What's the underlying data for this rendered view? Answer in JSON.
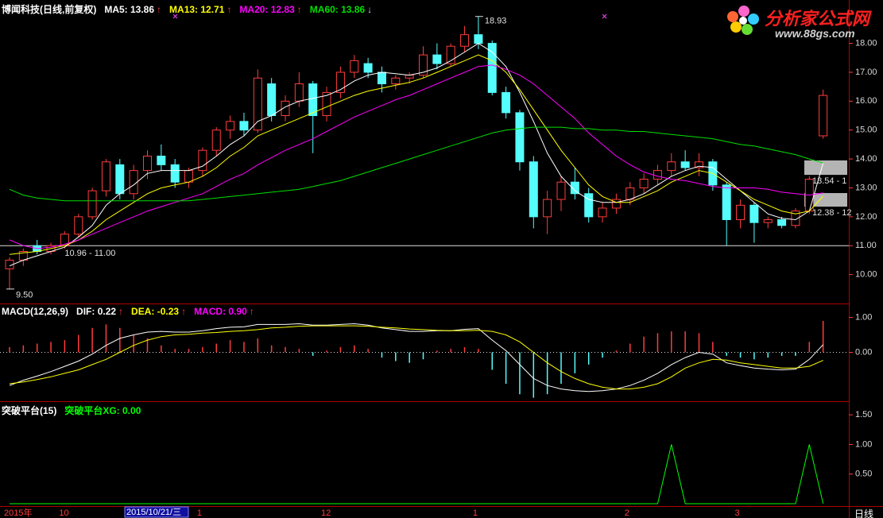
{
  "chart_data": [
    {
      "type": "candlestick",
      "title": "博闻科技(日线,前复权)",
      "cursor_label": "2015/10/21/三",
      "categories": [
        "2015年",
        null,
        null,
        null,
        "10",
        null,
        null,
        null,
        null,
        null,
        null,
        null,
        null,
        null,
        "1",
        null,
        null,
        null,
        null,
        null,
        null,
        null,
        null,
        "12",
        null,
        null,
        null,
        null,
        null,
        null,
        null,
        null,
        null,
        null,
        "1",
        null,
        null,
        null,
        null,
        null,
        null,
        null,
        null,
        null,
        null,
        "2",
        null,
        null,
        null,
        null,
        null,
        null,
        null,
        "3",
        null,
        null,
        null,
        null,
        null,
        null
      ],
      "ohlc": [
        [
          10.2,
          10.6,
          9.5,
          10.5
        ],
        [
          10.5,
          10.9,
          10.3,
          10.8
        ],
        [
          11.0,
          11.2,
          10.7,
          10.8
        ],
        [
          10.8,
          11.1,
          10.7,
          11.0
        ],
        [
          11.0,
          11.5,
          10.9,
          11.4
        ],
        [
          11.4,
          12.1,
          11.3,
          12.0
        ],
        [
          12.0,
          13.0,
          11.9,
          12.9
        ],
        [
          12.9,
          14.0,
          12.7,
          13.9
        ],
        [
          13.8,
          14.0,
          12.6,
          12.8
        ],
        [
          12.8,
          13.8,
          12.6,
          13.6
        ],
        [
          13.6,
          14.3,
          13.3,
          14.1
        ],
        [
          14.1,
          14.5,
          13.6,
          13.8
        ],
        [
          13.8,
          14.0,
          13.0,
          13.2
        ],
        [
          13.2,
          13.7,
          13.0,
          13.6
        ],
        [
          13.6,
          14.4,
          13.4,
          14.3
        ],
        [
          14.3,
          15.1,
          14.1,
          15.0
        ],
        [
          15.0,
          15.5,
          14.7,
          15.3
        ],
        [
          15.3,
          15.6,
          14.8,
          15.0
        ],
        [
          15.0,
          17.1,
          14.9,
          16.8
        ],
        [
          16.6,
          16.8,
          15.3,
          15.5
        ],
        [
          15.5,
          16.2,
          15.3,
          16.0
        ],
        [
          16.0,
          17.0,
          15.8,
          16.6
        ],
        [
          16.6,
          16.7,
          14.2,
          15.5
        ],
        [
          15.5,
          16.5,
          15.3,
          16.3
        ],
        [
          16.3,
          17.2,
          16.1,
          17.0
        ],
        [
          17.0,
          17.6,
          16.8,
          17.4
        ],
        [
          17.3,
          17.5,
          16.8,
          17.0
        ],
        [
          17.0,
          17.2,
          16.3,
          16.6
        ],
        [
          16.6,
          16.9,
          16.4,
          16.8
        ],
        [
          16.8,
          17.0,
          16.6,
          16.9
        ],
        [
          16.9,
          17.9,
          16.8,
          17.6
        ],
        [
          17.6,
          18.0,
          17.1,
          17.3
        ],
        [
          17.3,
          18.0,
          17.2,
          17.9
        ],
        [
          17.9,
          18.6,
          17.7,
          18.3
        ],
        [
          18.3,
          18.93,
          17.8,
          18.0
        ],
        [
          18.0,
          18.1,
          16.2,
          16.3
        ],
        [
          16.3,
          16.5,
          15.4,
          15.6
        ],
        [
          15.6,
          15.7,
          13.6,
          13.9
        ],
        [
          13.9,
          14.1,
          11.6,
          12.0
        ],
        [
          12.0,
          12.9,
          11.4,
          12.6
        ],
        [
          12.6,
          13.4,
          12.2,
          13.2
        ],
        [
          13.2,
          13.7,
          12.6,
          12.8
        ],
        [
          12.8,
          13.0,
          11.8,
          12.0
        ],
        [
          12.0,
          12.5,
          11.8,
          12.3
        ],
        [
          12.3,
          12.8,
          12.1,
          12.6
        ],
        [
          12.6,
          13.2,
          12.4,
          13.0
        ],
        [
          13.0,
          13.5,
          12.8,
          13.3
        ],
        [
          13.3,
          13.8,
          13.1,
          13.6
        ],
        [
          13.6,
          14.2,
          13.4,
          13.9
        ],
        [
          13.9,
          14.3,
          13.6,
          13.7
        ],
        [
          13.7,
          14.2,
          13.4,
          13.9
        ],
        [
          13.9,
          14.0,
          12.9,
          13.1
        ],
        [
          13.1,
          13.2,
          11.0,
          11.9
        ],
        [
          11.9,
          12.6,
          11.6,
          12.4
        ],
        [
          12.4,
          12.5,
          11.1,
          11.8
        ],
        [
          11.8,
          12.0,
          11.6,
          11.9
        ],
        [
          11.9,
          12.0,
          11.6,
          11.7
        ],
        [
          11.7,
          12.3,
          11.6,
          12.2
        ],
        [
          12.2,
          13.4,
          12.1,
          13.3
        ],
        [
          14.8,
          16.4,
          14.7,
          16.2
        ]
      ],
      "up_color": "#ff3c3c",
      "down_color": "#54fcfc",
      "series": [
        {
          "name": "MA5: 13.86",
          "arrow": "↑",
          "arrow_color": "#ff3c3c",
          "color": "#ffffff",
          "values": [
            10.3,
            10.5,
            10.65,
            10.8,
            10.95,
            11.3,
            11.7,
            12.4,
            12.8,
            13.1,
            13.5,
            13.6,
            13.6,
            13.6,
            13.75,
            14.1,
            14.5,
            14.8,
            15.3,
            15.5,
            15.8,
            16.0,
            16.1,
            16.2,
            16.4,
            16.7,
            16.9,
            17.0,
            16.95,
            16.9,
            17.0,
            17.15,
            17.4,
            17.7,
            18.0,
            17.7,
            17.2,
            16.3,
            15.3,
            14.2,
            13.4,
            12.9,
            12.6,
            12.5,
            12.5,
            12.6,
            12.8,
            13.1,
            13.4,
            13.6,
            13.75,
            13.7,
            13.3,
            12.9,
            12.5,
            12.1,
            11.95,
            11.9,
            12.2,
            13.86
          ]
        },
        {
          "name": "MA13: 12.71",
          "arrow": "↑",
          "arrow_color": "#ff3c3c",
          "color": "#ffff00",
          "values": [
            10.7,
            10.75,
            10.8,
            10.9,
            11.0,
            11.2,
            11.5,
            11.9,
            12.2,
            12.5,
            12.8,
            13.0,
            13.1,
            13.2,
            13.4,
            13.7,
            14.1,
            14.4,
            14.8,
            15.0,
            15.2,
            15.4,
            15.6,
            15.8,
            16.0,
            16.2,
            16.35,
            16.45,
            16.55,
            16.65,
            16.8,
            17.0,
            17.2,
            17.4,
            17.6,
            17.4,
            17.0,
            16.4,
            15.7,
            15.0,
            14.3,
            13.7,
            13.1,
            12.7,
            12.5,
            12.5,
            12.7,
            12.9,
            13.2,
            13.4,
            13.6,
            13.5,
            13.2,
            12.9,
            12.6,
            12.4,
            12.2,
            12.1,
            12.2,
            12.71
          ]
        },
        {
          "name": "MA20: 12.83",
          "arrow": "↑",
          "arrow_color": "#ff3c3c",
          "color": "#ff00ff",
          "values": [
            11.2,
            11.0,
            10.9,
            10.95,
            11.05,
            11.2,
            11.4,
            11.6,
            11.8,
            12.0,
            12.2,
            12.35,
            12.5,
            12.65,
            12.8,
            13.05,
            13.3,
            13.5,
            13.8,
            14.05,
            14.3,
            14.5,
            14.7,
            14.95,
            15.2,
            15.45,
            15.65,
            15.85,
            16.05,
            16.2,
            16.4,
            16.6,
            16.8,
            17.0,
            17.2,
            17.25,
            17.1,
            16.9,
            16.6,
            16.2,
            15.8,
            15.4,
            14.9,
            14.5,
            14.1,
            13.8,
            13.55,
            13.4,
            13.3,
            13.25,
            13.15,
            13.05,
            13.0,
            13.0,
            13.0,
            12.95,
            12.85,
            12.8,
            12.75,
            12.83
          ]
        },
        {
          "name": "MA60: 13.86",
          "arrow": "↓",
          "arrow_color": "#cfcfff",
          "color": "#00e000",
          "values": [
            12.95,
            12.75,
            12.65,
            12.6,
            12.55,
            12.55,
            12.55,
            12.55,
            12.55,
            12.55,
            12.55,
            12.55,
            12.55,
            12.55,
            12.6,
            12.65,
            12.7,
            12.75,
            12.8,
            12.85,
            12.9,
            12.95,
            13.05,
            13.15,
            13.25,
            13.4,
            13.55,
            13.7,
            13.85,
            14.0,
            14.15,
            14.3,
            14.45,
            14.6,
            14.75,
            14.9,
            15.0,
            15.05,
            15.1,
            15.1,
            15.1,
            15.05,
            15.05,
            15.0,
            15.0,
            14.95,
            14.95,
            14.9,
            14.85,
            14.8,
            14.75,
            14.7,
            14.6,
            14.5,
            14.45,
            14.35,
            14.25,
            14.15,
            14.0,
            13.86
          ]
        }
      ],
      "annotations": [
        {
          "label": "18.93",
          "value": 18.93,
          "index": 34
        },
        {
          "label": "9.50",
          "value": 9.5,
          "index": 0
        }
      ],
      "hline": {
        "value": 11.0,
        "label": "10.96 - 11.00"
      },
      "zones": [
        {
          "range": [
            13.45,
            13.95
          ],
          "label": "13.54 - 1"
        },
        {
          "range": [
            12.35,
            12.82
          ],
          "label": "12.38 - 12"
        }
      ],
      "ylim": [
        9.0,
        19.5
      ],
      "yticks": [
        {
          "value": 10,
          "label": "10.00"
        },
        {
          "value": 11,
          "label": "11.00"
        },
        {
          "value": 12,
          "label": "12.00"
        },
        {
          "value": 13,
          "label": "13.00"
        },
        {
          "value": 14,
          "label": "14.00"
        },
        {
          "value": 15,
          "label": "15.00"
        },
        {
          "value": 16,
          "label": "16.00"
        },
        {
          "value": 17,
          "label": "17.00"
        },
        {
          "value": 18,
          "label": "18.00"
        }
      ]
    },
    {
      "type": "macd",
      "title": "MACD(12,26,9)",
      "series": [
        {
          "name": "DIF: 0.22",
          "arrow": "↑",
          "arrow_color": "#ff3c3c",
          "color": "#ffffff",
          "kind": "line",
          "values": [
            -0.95,
            -0.8,
            -0.68,
            -0.55,
            -0.4,
            -0.25,
            -0.05,
            0.2,
            0.4,
            0.5,
            0.58,
            0.6,
            0.58,
            0.58,
            0.62,
            0.68,
            0.72,
            0.73,
            0.8,
            0.8,
            0.8,
            0.82,
            0.78,
            0.78,
            0.8,
            0.82,
            0.78,
            0.7,
            0.65,
            0.6,
            0.6,
            0.62,
            0.62,
            0.66,
            0.68,
            0.35,
            0.05,
            -0.35,
            -0.75,
            -0.95,
            -1.05,
            -1.1,
            -1.12,
            -1.1,
            -1.05,
            -0.95,
            -0.8,
            -0.6,
            -0.35,
            -0.15,
            0.0,
            -0.05,
            -0.3,
            -0.38,
            -0.45,
            -0.48,
            -0.5,
            -0.48,
            -0.2,
            0.22
          ]
        },
        {
          "name": "DEA: -0.23",
          "arrow": "↑",
          "arrow_color": "#ff3c3c",
          "color": "#ffff00",
          "kind": "line",
          "values": [
            -0.9,
            -0.85,
            -0.78,
            -0.7,
            -0.6,
            -0.5,
            -0.35,
            -0.2,
            0.0,
            0.2,
            0.35,
            0.45,
            0.5,
            0.52,
            0.55,
            0.57,
            0.6,
            0.62,
            0.65,
            0.7,
            0.72,
            0.75,
            0.76,
            0.76,
            0.76,
            0.76,
            0.75,
            0.72,
            0.7,
            0.67,
            0.65,
            0.63,
            0.62,
            0.62,
            0.63,
            0.6,
            0.5,
            0.3,
            0.0,
            -0.3,
            -0.55,
            -0.75,
            -0.9,
            -1.0,
            -1.05,
            -1.05,
            -1.0,
            -0.9,
            -0.7,
            -0.45,
            -0.3,
            -0.2,
            -0.22,
            -0.3,
            -0.35,
            -0.4,
            -0.45,
            -0.45,
            -0.4,
            -0.23
          ]
        },
        {
          "name": "MACD: 0.90",
          "arrow": "↑",
          "arrow_color": "#ff3c3c",
          "color": "#ff00ff",
          "kind": "bar",
          "up_color": "#ff3c3c",
          "down_color": "#54fcfc",
          "values": [
            0.15,
            0.2,
            0.25,
            0.3,
            0.35,
            0.5,
            0.7,
            0.8,
            0.7,
            0.5,
            0.4,
            0.2,
            0.1,
            0.1,
            0.15,
            0.25,
            0.35,
            0.3,
            0.4,
            0.2,
            0.15,
            0.1,
            -0.1,
            0.05,
            0.15,
            0.2,
            0.1,
            -0.15,
            -0.25,
            -0.3,
            -0.2,
            0.05,
            0.1,
            0.15,
            0.1,
            -0.5,
            -0.9,
            -1.2,
            -1.3,
            -1.2,
            -0.9,
            -0.6,
            -0.35,
            -0.15,
            0.05,
            0.25,
            0.45,
            0.55,
            0.6,
            0.6,
            0.55,
            0.3,
            -0.1,
            -0.15,
            -0.2,
            -0.15,
            -0.1,
            -0.1,
            0.3,
            0.9
          ]
        }
      ],
      "ylim": [
        -1.4,
        1.4
      ],
      "yticks": [
        {
          "value": 1,
          "label": "1.00"
        },
        {
          "value": 0,
          "label": "0.00"
        }
      ]
    },
    {
      "type": "line",
      "title": "突破平台(15)",
      "series": [
        {
          "name": "突破平台XG: 0.00",
          "color": "#00ff00",
          "values": [
            0,
            0,
            0,
            0,
            0,
            0,
            0,
            0,
            0,
            0,
            0,
            0,
            0,
            0,
            0,
            0,
            0,
            0,
            0,
            0,
            0,
            0,
            0,
            0,
            0,
            0,
            0,
            0,
            0,
            0,
            0,
            0,
            0,
            0,
            0,
            0,
            0,
            0,
            0,
            0,
            0,
            0,
            0,
            0,
            0,
            0,
            0,
            0,
            1,
            0,
            0,
            0,
            0,
            0,
            0,
            0,
            0,
            0,
            1,
            0
          ]
        }
      ],
      "ylim": [
        -0.04,
        1.73
      ],
      "yticks": [
        {
          "value": 0.5,
          "label": "0.50"
        },
        {
          "value": 1,
          "label": "1.00"
        },
        {
          "value": 1.5,
          "label": "1.50"
        }
      ]
    }
  ],
  "period_label": "日线",
  "watermark": {
    "title": "分析家公式网",
    "url": "www.88gs.com"
  }
}
